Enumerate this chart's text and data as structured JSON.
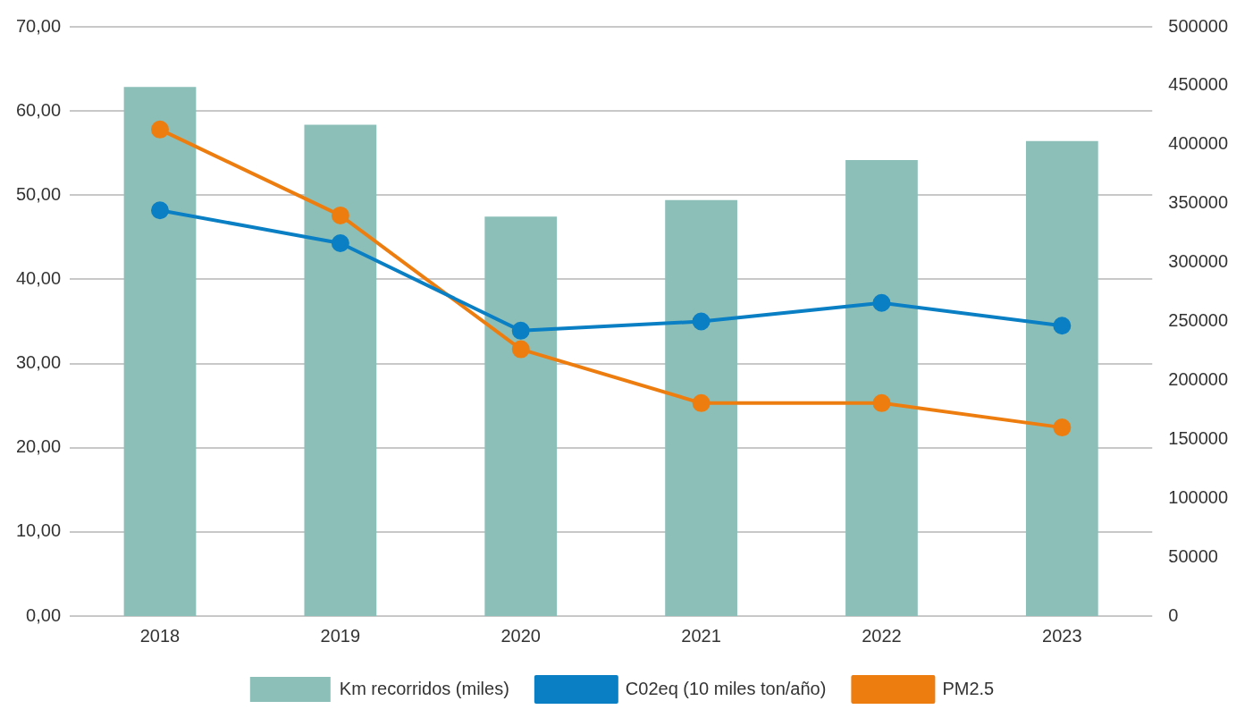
{
  "chart_data": {
    "type": "bar",
    "categories": [
      "2018",
      "2019",
      "2020",
      "2021",
      "2022",
      "2023"
    ],
    "series": [
      {
        "name": "Km recorridos (miles)",
        "axis": "y2",
        "color": "#8dbfb9",
        "values": [
          449000,
          417000,
          339000,
          353000,
          387000,
          403000
        ]
      },
      {
        "name": "C02eq (10 miles ton/año)",
        "type": "line",
        "color": "#0a7fc4",
        "values": [
          48.2,
          44.3,
          33.9,
          35.0,
          37.2,
          34.5
        ]
      },
      {
        "name": "PM2.5",
        "type": "line",
        "color": "#ee7d0f",
        "values": [
          57.8,
          47.6,
          31.7,
          25.3,
          25.3,
          22.4
        ]
      }
    ],
    "ylim": [
      0,
      70
    ],
    "yticks": [
      {
        "value": 0,
        "label": "0,00"
      },
      {
        "value": 10,
        "label": "10,00"
      },
      {
        "value": 20,
        "label": "20,00"
      },
      {
        "value": 30,
        "label": "30,00"
      },
      {
        "value": 40,
        "label": "40,00"
      },
      {
        "value": 50,
        "label": "50,00"
      },
      {
        "value": 60,
        "label": "60,00"
      },
      {
        "value": 70,
        "label": "70,00"
      }
    ],
    "y2lim": [
      0,
      500000
    ],
    "y2ticks": [
      0,
      50000,
      100000,
      150000,
      200000,
      250000,
      300000,
      350000,
      400000,
      450000,
      500000
    ],
    "grid": "y",
    "legend": "bottom",
    "marker": "circle",
    "line_style": "solid"
  }
}
